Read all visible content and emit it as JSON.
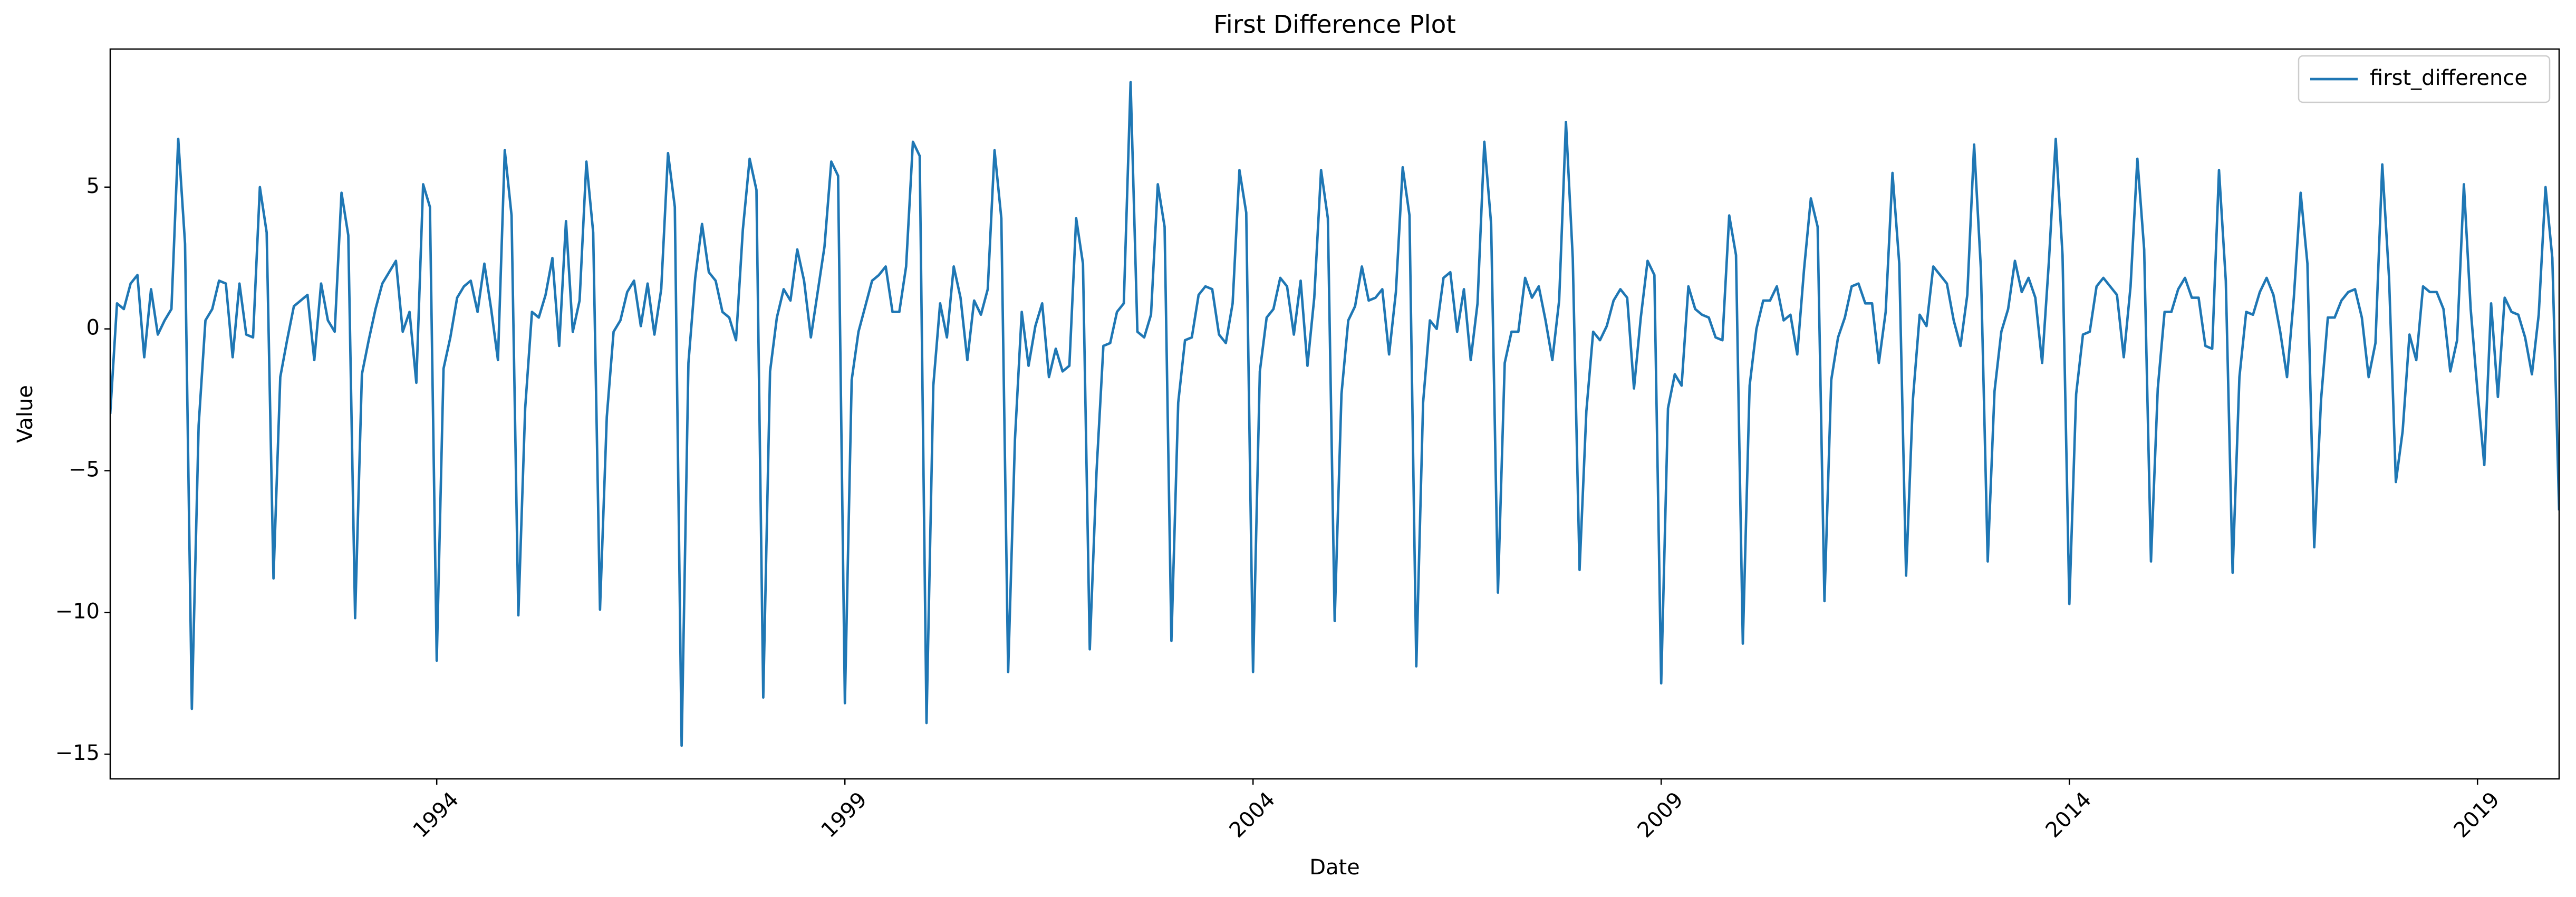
{
  "chart_data": {
    "type": "line",
    "title": "First Difference Plot",
    "x_label": "Date",
    "y_label": "Value",
    "x": [
      "1990-01",
      "1990-02",
      "1990-03",
      "1990-04",
      "1990-05",
      "1990-06",
      "1990-07",
      "1990-08",
      "1990-09",
      "1990-10",
      "1990-11",
      "1990-12",
      "1991-01",
      "1991-02",
      "1991-03",
      "1991-04",
      "1991-05",
      "1991-06",
      "1991-07",
      "1991-08",
      "1991-09",
      "1991-10",
      "1991-11",
      "1991-12",
      "1992-01",
      "1992-02",
      "1992-03",
      "1992-04",
      "1992-05",
      "1992-06",
      "1992-07",
      "1992-08",
      "1992-09",
      "1992-10",
      "1992-11",
      "1992-12",
      "1993-01",
      "1993-02",
      "1993-03",
      "1993-04",
      "1993-05",
      "1993-06",
      "1993-07",
      "1993-08",
      "1993-09",
      "1993-10",
      "1993-11",
      "1993-12",
      "1994-01",
      "1994-02",
      "1994-03",
      "1994-04",
      "1994-05",
      "1994-06",
      "1994-07",
      "1994-08",
      "1994-09",
      "1994-10",
      "1994-11",
      "1994-12",
      "1995-01",
      "1995-02",
      "1995-03",
      "1995-04",
      "1995-05",
      "1995-06",
      "1995-07",
      "1995-08",
      "1995-09",
      "1995-10",
      "1995-11",
      "1995-12",
      "1996-01",
      "1996-02",
      "1996-03",
      "1996-04",
      "1996-05",
      "1996-06",
      "1996-07",
      "1996-08",
      "1996-09",
      "1996-10",
      "1996-11",
      "1996-12",
      "1997-01",
      "1997-02",
      "1997-03",
      "1997-04",
      "1997-05",
      "1997-06",
      "1997-07",
      "1997-08",
      "1997-09",
      "1997-10",
      "1997-11",
      "1997-12",
      "1998-01",
      "1998-02",
      "1998-03",
      "1998-04",
      "1998-05",
      "1998-06",
      "1998-07",
      "1998-08",
      "1998-09",
      "1998-10",
      "1998-11",
      "1998-12",
      "1999-01",
      "1999-02",
      "1999-03",
      "1999-04",
      "1999-05",
      "1999-06",
      "1999-07",
      "1999-08",
      "1999-09",
      "1999-10",
      "1999-11",
      "1999-12",
      "2000-01",
      "2000-02",
      "2000-03",
      "2000-04",
      "2000-05",
      "2000-06",
      "2000-07",
      "2000-08",
      "2000-09",
      "2000-10",
      "2000-11",
      "2000-12",
      "2001-01",
      "2001-02",
      "2001-03",
      "2001-04",
      "2001-05",
      "2001-06",
      "2001-07",
      "2001-08",
      "2001-09",
      "2001-10",
      "2001-11",
      "2001-12",
      "2002-01",
      "2002-02",
      "2002-03",
      "2002-04",
      "2002-05",
      "2002-06",
      "2002-07",
      "2002-08",
      "2002-09",
      "2002-10",
      "2002-11",
      "2002-12",
      "2003-01",
      "2003-02",
      "2003-03",
      "2003-04",
      "2003-05",
      "2003-06",
      "2003-07",
      "2003-08",
      "2003-09",
      "2003-10",
      "2003-11",
      "2003-12",
      "2004-01",
      "2004-02",
      "2004-03",
      "2004-04",
      "2004-05",
      "2004-06",
      "2004-07",
      "2004-08",
      "2004-09",
      "2004-10",
      "2004-11",
      "2004-12",
      "2005-01",
      "2005-02",
      "2005-03",
      "2005-04",
      "2005-05",
      "2005-06",
      "2005-07",
      "2005-08",
      "2005-09",
      "2005-10",
      "2005-11",
      "2005-12",
      "2006-01",
      "2006-02",
      "2006-03",
      "2006-04",
      "2006-05",
      "2006-06",
      "2006-07",
      "2006-08",
      "2006-09",
      "2006-10",
      "2006-11",
      "2006-12",
      "2007-01",
      "2007-02",
      "2007-03",
      "2007-04",
      "2007-05",
      "2007-06",
      "2007-07",
      "2007-08",
      "2007-09",
      "2007-10",
      "2007-11",
      "2007-12",
      "2008-01",
      "2008-02",
      "2008-03",
      "2008-04",
      "2008-05",
      "2008-06",
      "2008-07",
      "2008-08",
      "2008-09",
      "2008-10",
      "2008-11",
      "2008-12",
      "2009-01",
      "2009-02",
      "2009-03",
      "2009-04",
      "2009-05",
      "2009-06",
      "2009-07",
      "2009-08",
      "2009-09",
      "2009-10",
      "2009-11",
      "2009-12",
      "2010-01",
      "2010-02",
      "2010-03",
      "2010-04",
      "2010-05",
      "2010-06",
      "2010-07",
      "2010-08",
      "2010-09",
      "2010-10",
      "2010-11",
      "2010-12",
      "2011-01",
      "2011-02",
      "2011-03",
      "2011-04",
      "2011-05",
      "2011-06",
      "2011-07",
      "2011-08",
      "2011-09",
      "2011-10",
      "2011-11",
      "2011-12",
      "2012-01",
      "2012-02",
      "2012-03",
      "2012-04",
      "2012-05",
      "2012-06",
      "2012-07",
      "2012-08",
      "2012-09",
      "2012-10",
      "2012-11",
      "2012-12",
      "2013-01",
      "2013-02",
      "2013-03",
      "2013-04",
      "2013-05",
      "2013-06",
      "2013-07",
      "2013-08",
      "2013-09",
      "2013-10",
      "2013-11",
      "2013-12",
      "2014-01",
      "2014-02",
      "2014-03",
      "2014-04",
      "2014-05",
      "2014-06",
      "2014-07",
      "2014-08",
      "2014-09",
      "2014-10",
      "2014-11",
      "2014-12",
      "2015-01",
      "2015-02",
      "2015-03",
      "2015-04",
      "2015-05",
      "2015-06",
      "2015-07",
      "2015-08",
      "2015-09",
      "2015-10",
      "2015-11",
      "2015-12",
      "2016-01",
      "2016-02",
      "2016-03",
      "2016-04",
      "2016-05",
      "2016-06",
      "2016-07",
      "2016-08",
      "2016-09",
      "2016-10",
      "2016-11",
      "2016-12",
      "2017-01",
      "2017-02",
      "2017-03",
      "2017-04",
      "2017-05",
      "2017-06",
      "2017-07",
      "2017-08",
      "2017-09",
      "2017-10",
      "2017-11",
      "2017-12",
      "2018-01",
      "2018-02",
      "2018-03",
      "2018-04",
      "2018-05",
      "2018-06",
      "2018-07",
      "2018-08",
      "2018-09",
      "2018-10",
      "2018-11",
      "2018-12",
      "2019-01",
      "2019-02",
      "2019-03",
      "2019-04",
      "2019-05",
      "2019-06",
      "2019-07",
      "2019-08",
      "2019-09",
      "2019-10",
      "2019-11",
      "2019-12",
      "2020-01"
    ],
    "series": [
      {
        "name": "first_difference",
        "color": "#1f77b4",
        "values": [
          -3.0,
          0.9,
          0.7,
          1.6,
          1.9,
          -1.0,
          1.4,
          -0.2,
          0.3,
          0.7,
          6.7,
          3.0,
          -13.4,
          -3.4,
          0.3,
          0.7,
          1.7,
          1.6,
          -1.0,
          1.6,
          -0.2,
          -0.3,
          5.0,
          3.4,
          -8.8,
          -1.7,
          -0.4,
          0.8,
          1.0,
          1.2,
          -1.1,
          1.6,
          0.3,
          -0.1,
          4.8,
          3.3,
          -10.2,
          -1.6,
          -0.4,
          0.7,
          1.6,
          2.0,
          2.4,
          -0.1,
          0.6,
          -1.9,
          5.1,
          4.3,
          -11.7,
          -1.4,
          -0.3,
          1.1,
          1.5,
          1.7,
          0.6,
          2.3,
          0.7,
          -1.1,
          6.3,
          4.0,
          -10.1,
          -2.8,
          0.6,
          0.4,
          1.2,
          2.5,
          -0.6,
          3.8,
          -0.1,
          1.0,
          5.9,
          3.4,
          -9.9,
          -3.1,
          -0.1,
          0.3,
          1.3,
          1.7,
          0.1,
          1.6,
          -0.2,
          1.4,
          6.2,
          4.3,
          -14.7,
          -1.2,
          1.8,
          3.7,
          2.0,
          1.7,
          0.6,
          0.4,
          -0.4,
          3.5,
          6.0,
          4.9,
          -13.0,
          -1.5,
          0.4,
          1.4,
          1.0,
          2.8,
          1.7,
          -0.3,
          1.3,
          2.9,
          5.9,
          5.4,
          -13.2,
          -1.8,
          -0.1,
          0.8,
          1.7,
          1.9,
          2.2,
          0.6,
          0.6,
          2.2,
          6.6,
          6.1,
          -13.9,
          -2.0,
          0.9,
          -0.3,
          2.2,
          1.1,
          -1.1,
          1.0,
          0.5,
          1.4,
          6.3,
          3.9,
          -12.1,
          -3.9,
          0.6,
          -1.3,
          0.1,
          0.9,
          -1.7,
          -0.7,
          -1.5,
          -1.3,
          3.9,
          2.3,
          -11.3,
          -5.0,
          -0.6,
          -0.5,
          0.6,
          0.9,
          8.7,
          -0.1,
          -0.3,
          0.5,
          5.1,
          3.6,
          -11.0,
          -2.6,
          -0.4,
          -0.3,
          1.2,
          1.5,
          1.4,
          -0.2,
          -0.5,
          0.9,
          5.6,
          4.1,
          -12.1,
          -1.5,
          0.4,
          0.7,
          1.8,
          1.5,
          -0.2,
          1.7,
          -1.3,
          1.1,
          5.6,
          3.9,
          -10.3,
          -2.3,
          0.3,
          0.8,
          2.2,
          1.0,
          1.1,
          1.4,
          -0.9,
          1.3,
          5.7,
          4.0,
          -11.9,
          -2.6,
          0.3,
          0.0,
          1.8,
          2.0,
          -0.1,
          1.4,
          -1.1,
          0.9,
          6.6,
          3.7,
          -9.3,
          -1.2,
          -0.1,
          -0.1,
          1.8,
          1.1,
          1.5,
          0.3,
          -1.1,
          1.0,
          7.3,
          2.5,
          -8.5,
          -2.9,
          -0.1,
          -0.4,
          0.1,
          1.0,
          1.4,
          1.1,
          -2.1,
          0.4,
          2.4,
          1.9,
          -12.5,
          -2.8,
          -1.6,
          -2.0,
          1.5,
          0.7,
          0.5,
          0.4,
          -0.3,
          -0.4,
          4.0,
          2.6,
          -11.1,
          -2.0,
          0.0,
          1.0,
          1.0,
          1.5,
          0.3,
          0.5,
          -0.9,
          2.1,
          4.6,
          3.6,
          -9.6,
          -1.8,
          -0.3,
          0.4,
          1.5,
          1.6,
          0.9,
          0.9,
          -1.2,
          0.6,
          5.5,
          2.3,
          -8.7,
          -2.5,
          0.5,
          0.1,
          2.2,
          1.9,
          1.6,
          0.3,
          -0.6,
          1.2,
          6.5,
          2.1,
          -8.2,
          -2.2,
          -0.1,
          0.7,
          2.4,
          1.3,
          1.8,
          1.1,
          -1.2,
          2.4,
          6.7,
          2.6,
          -9.7,
          -2.3,
          -0.2,
          -0.1,
          1.5,
          1.8,
          1.5,
          1.2,
          -1.0,
          1.5,
          6.0,
          2.8,
          -8.2,
          -2.1,
          0.6,
          0.6,
          1.4,
          1.8,
          1.1,
          1.1,
          -0.6,
          -0.7,
          5.6,
          1.7,
          -8.6,
          -1.7,
          0.6,
          0.5,
          1.3,
          1.8,
          1.2,
          -0.1,
          -1.7,
          1.1,
          4.8,
          2.3,
          -7.7,
          -2.5,
          0.4,
          0.4,
          1.0,
          1.3,
          1.4,
          0.4,
          -1.7,
          -0.5,
          5.8,
          1.8,
          -5.4,
          -3.6,
          -0.2,
          -1.1,
          1.5,
          1.3,
          1.3,
          0.7,
          -1.5,
          -0.4,
          5.1,
          0.7,
          -2.2,
          -4.8,
          0.9,
          -2.4,
          1.1,
          0.6,
          0.5,
          -0.3,
          -1.6,
          0.5,
          5.0,
          2.5,
          -6.4
        ]
      }
    ],
    "xlim": [
      "1990-01",
      "2020-01"
    ],
    "xticks": [
      {
        "value": "1994-01",
        "label": "1994"
      },
      {
        "value": "1999-01",
        "label": "1999"
      },
      {
        "value": "2004-01",
        "label": "2004"
      },
      {
        "value": "2009-01",
        "label": "2009"
      },
      {
        "value": "2014-01",
        "label": "2014"
      },
      {
        "value": "2019-01",
        "label": "2019"
      }
    ],
    "ylim": [
      -15.87,
      9.87
    ],
    "yticks": [
      {
        "value": -15,
        "label": "−15"
      },
      {
        "value": -10,
        "label": "−10"
      },
      {
        "value": -5,
        "label": "−5"
      },
      0,
      5
    ],
    "legend": "upper right",
    "grid": false
  }
}
